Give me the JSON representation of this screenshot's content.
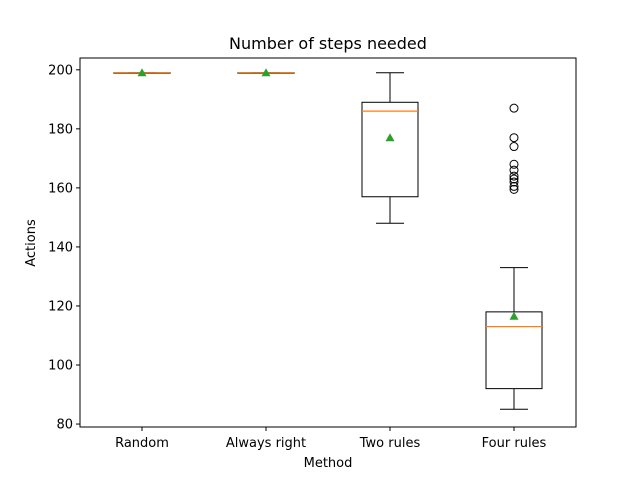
{
  "chart_data": {
    "type": "box",
    "title": "Number of steps needed",
    "xlabel": "Method",
    "ylabel": "Actions",
    "ylim": [
      79,
      204
    ],
    "yticks": [
      80,
      100,
      120,
      140,
      160,
      180,
      200
    ],
    "categories": [
      "Random",
      "Always right",
      "Two rules",
      "Four rules"
    ],
    "grid": false,
    "colors": {
      "box": "#000000",
      "median": "#ff7f0e",
      "mean": "#2ca02c",
      "flier": "#000000"
    },
    "boxes": [
      {
        "category": "Random",
        "whisker_low": 199,
        "q1": 199,
        "median": 199,
        "q3": 199,
        "whisker_high": 199,
        "mean": 199,
        "fliers": []
      },
      {
        "category": "Always right",
        "whisker_low": 199,
        "q1": 199,
        "median": 199,
        "q3": 199,
        "whisker_high": 199,
        "mean": 199,
        "fliers": []
      },
      {
        "category": "Two rules",
        "whisker_low": 148,
        "q1": 157,
        "median": 186,
        "q3": 189,
        "whisker_high": 199,
        "mean": 177,
        "fliers": []
      },
      {
        "category": "Four rules",
        "whisker_low": 85,
        "q1": 92,
        "median": 113,
        "q3": 118,
        "whisker_high": 133,
        "mean": 116.5,
        "fliers": [
          159.5,
          160.5,
          162,
          163,
          164,
          166,
          168,
          174,
          177,
          187
        ]
      }
    ]
  }
}
